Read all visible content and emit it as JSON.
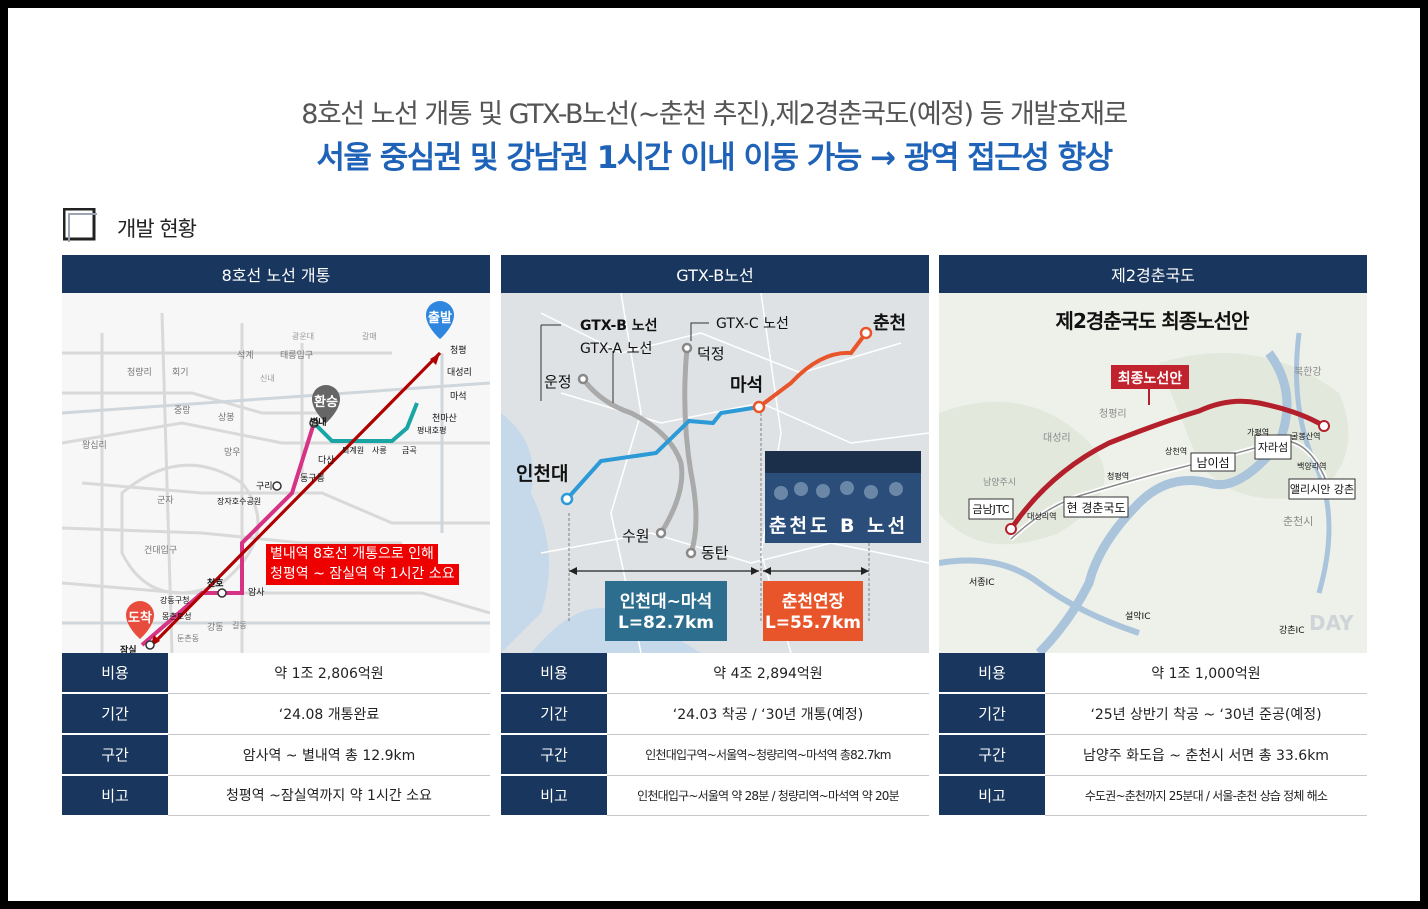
{
  "headline": {
    "line1": "8호선 노선 개통 및 GTX-B노선(~춘천 추진),제2경춘국도(예정) 등 개발호재로",
    "line2": "서울 중심권 및 강남권 1시간 이내 이동 가능 → 광역 접근성 향상"
  },
  "section": {
    "title": "개발 현황"
  },
  "panels": [
    {
      "title": "8호선 노선 개통",
      "map": {
        "start_badge": "출발",
        "transfer_badge": "환승",
        "arrive_badge": "도착",
        "note_line1": "별내역 8호선 개통으로 인해",
        "note_line2": "청평역 ~ 잠실역 약 1시간 소요",
        "stations": [
          "청평",
          "대성리",
          "마석",
          "천마산",
          "평내호평",
          "별내",
          "다산",
          "동구릉",
          "구리",
          "장자호수공원",
          "암사",
          "천호",
          "강동구청",
          "몽촌토성",
          "잠실",
          "갈매",
          "사릉",
          "금곡",
          "퇴계원",
          "태릉입구",
          "석계",
          "회기",
          "청량리",
          "왕십리",
          "상봉",
          "망우",
          "중랑",
          "군자",
          "건대입구",
          "강동",
          "길동",
          "둔촌동",
          "광운대",
          "신내"
        ]
      },
      "rows": [
        {
          "label": "비용",
          "value": "약 1조 2,806억원"
        },
        {
          "label": "기간",
          "value": "‘24.08 개통완료"
        },
        {
          "label": "구간",
          "value": "암사역 ~ 별내역 총 12.9km"
        },
        {
          "label": "비고",
          "value": "청평역 ~잠실역까지 약 1시간 소요"
        }
      ]
    },
    {
      "title": "GTX-B노선",
      "map": {
        "legend_b": "GTX-B 노선",
        "legend_a": "GTX-A 노선",
        "legend_c": "GTX-C 노선",
        "station_chuncheon": "춘천",
        "station_maseok": "마석",
        "station_incheon": "인천대",
        "station_unjeong": "운정",
        "station_deokjeong": "덕정",
        "station_suwon": "수원",
        "station_dongtan": "동탄",
        "box1_line1": "인천대~마석",
        "box1_line2": "L=82.7km",
        "box2_line1": "춘천연장",
        "box2_line2": "L=55.7km",
        "photo_text": "춘천도 B 노선"
      },
      "rows": [
        {
          "label": "비용",
          "value": "약 4조 2,894억원"
        },
        {
          "label": "기간",
          "value": "‘24.03 착공 / ‘30년 개통(예정)"
        },
        {
          "label": "구간",
          "value": "인천대입구역~서울역~청량리역~마석역 총82.7km"
        },
        {
          "label": "비고",
          "value": "인천대입구~서울역 약 28분 / 청량리역~마석역 약 20분"
        }
      ]
    },
    {
      "title": "제2경춘국도",
      "map": {
        "map_title": "제2경춘국도 최종노선안",
        "final_route": "최종노선안",
        "current_road": "현 경춘국도",
        "jct": "금남JTC",
        "island1": "남이섬",
        "island2": "자라섬",
        "end_label": "앨리시안 강촌",
        "place_labels": [
          "청평리",
          "대성리",
          "남양주시",
          "청평역",
          "상천역",
          "가평역",
          "굴봉산역",
          "백양리역",
          "북한강",
          "춘천시",
          "서종IC",
          "설악IC",
          "강촌IC",
          "대성리역"
        ],
        "watermark": "DAY"
      },
      "rows": [
        {
          "label": "비용",
          "value": "약 1조 1,000억원"
        },
        {
          "label": "기간",
          "value": "‘25년 상반기 착공 ~ ‘30년 준공(예정)"
        },
        {
          "label": "구간",
          "value": "남양주 화도읍 ~ 춘천시 서면 총 33.6km"
        },
        {
          "label": "비고",
          "value": "수도권~춘천까지 25분대 / 서울-춘천 상습 정체 해소"
        }
      ]
    }
  ],
  "colors": {
    "navy": "#19365e",
    "headline_blue": "#1f63b8",
    "route_red": "#c00000",
    "gtx_blue": "#2b9ad6",
    "gtx_orange": "#e8552a"
  }
}
